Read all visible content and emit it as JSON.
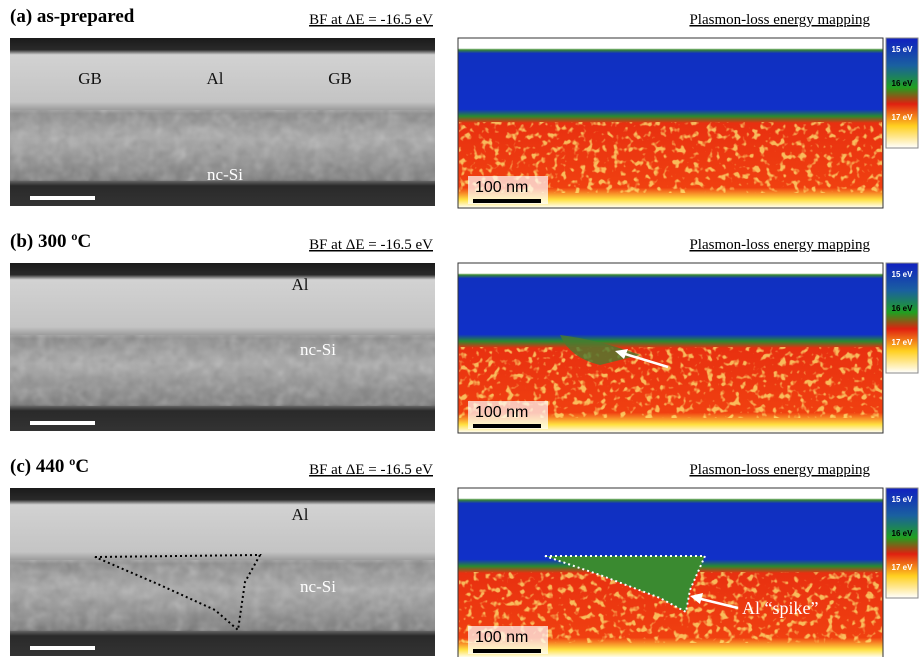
{
  "panels": [
    {
      "label": "(a) as-prepared",
      "bf_title": "BF at ΔE = -16.5 eV",
      "map_title": "Plasmon-loss energy mapping",
      "image_labels": [
        "GB",
        "Al",
        "GB",
        "nc-Si"
      ],
      "scale_label": "100 nm",
      "colorbar": [
        "15 eV",
        "16 eV",
        "17 eV"
      ]
    },
    {
      "label": "(b) 300 ºC",
      "bf_title": "BF at ΔE = -16.5 eV",
      "map_title": "Plasmon-loss energy mapping",
      "image_labels": [
        "Al",
        "nc-Si"
      ],
      "scale_label": "100 nm",
      "colorbar": [
        "15 eV",
        "16 eV",
        "17 eV"
      ]
    },
    {
      "label": "(c) 440 ºC",
      "bf_title": "BF at ΔE = -16.5 eV",
      "map_title": "Plasmon-loss energy mapping",
      "image_labels": [
        "Al",
        "nc-Si"
      ],
      "scale_label": "100 nm",
      "colorbar": [
        "15 eV",
        "16 eV",
        "17 eV"
      ],
      "annotation": "Al “spike”"
    }
  ]
}
